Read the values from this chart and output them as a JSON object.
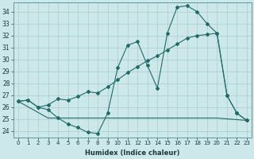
{
  "xlabel": "Humidex (Indice chaleur)",
  "xlim": [
    -0.5,
    23.5
  ],
  "ylim": [
    23.5,
    34.8
  ],
  "yticks": [
    24,
    25,
    26,
    27,
    28,
    29,
    30,
    31,
    32,
    33,
    34
  ],
  "xticks": [
    0,
    1,
    2,
    3,
    4,
    5,
    6,
    7,
    8,
    9,
    10,
    11,
    12,
    13,
    14,
    15,
    16,
    17,
    18,
    19,
    20,
    21,
    22,
    23
  ],
  "bg_color": "#cce8ea",
  "line_color": "#1f6b68",
  "series_peak_x": [
    0,
    1,
    2,
    3,
    4,
    5,
    6,
    7,
    8,
    9,
    10,
    11,
    12,
    13,
    14,
    15,
    16,
    17,
    18,
    19,
    20,
    21,
    22,
    23
  ],
  "series_peak_y": [
    26.5,
    26.6,
    26.0,
    25.8,
    25.1,
    24.6,
    24.3,
    23.9,
    23.8,
    25.5,
    29.3,
    31.2,
    31.5,
    29.5,
    27.6,
    32.2,
    34.4,
    34.5,
    34.0,
    33.0,
    32.2,
    27.0,
    25.5,
    24.9
  ],
  "series_avg_x": [
    0,
    1,
    2,
    3,
    4,
    5,
    6,
    7,
    8,
    9,
    10,
    11,
    12,
    13,
    14,
    15,
    16,
    17,
    18,
    19,
    20,
    21,
    22,
    23
  ],
  "series_avg_y": [
    26.5,
    26.6,
    26.0,
    26.2,
    26.7,
    26.6,
    26.9,
    27.3,
    27.2,
    27.7,
    28.3,
    28.9,
    29.4,
    29.9,
    30.3,
    30.8,
    31.3,
    31.8,
    32.0,
    32.1,
    32.2,
    27.0,
    25.5,
    24.9
  ],
  "series_min_x": [
    0,
    3,
    9,
    20,
    23
  ],
  "series_min_y": [
    26.5,
    25.1,
    25.1,
    25.1,
    24.9
  ]
}
